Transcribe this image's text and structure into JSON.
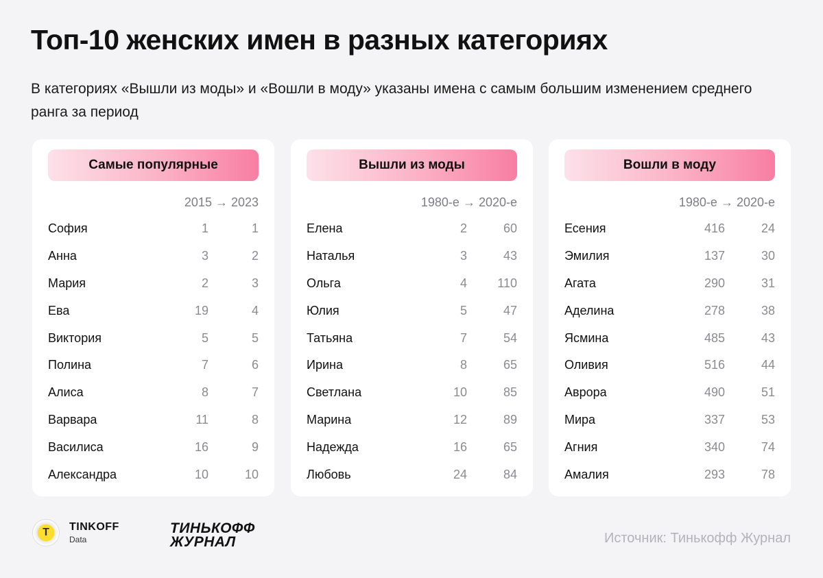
{
  "title": "Топ-10 женских имен в разных категориях",
  "subtitle": "В категориях «Вышли из моды» и «Вошли в моду» указаны имена с самым большим изменением среднего ранга за период",
  "chart_data": [
    {
      "type": "table",
      "title": "Самые популярные",
      "period": "2015 → 2023",
      "rows": [
        {
          "name": "София",
          "v1": 1,
          "v2": 1
        },
        {
          "name": "Анна",
          "v1": 3,
          "v2": 2
        },
        {
          "name": "Мария",
          "v1": 2,
          "v2": 3
        },
        {
          "name": "Ева",
          "v1": 19,
          "v2": 4
        },
        {
          "name": "Виктория",
          "v1": 5,
          "v2": 5
        },
        {
          "name": "Полина",
          "v1": 7,
          "v2": 6
        },
        {
          "name": "Алиса",
          "v1": 8,
          "v2": 7
        },
        {
          "name": "Варвара",
          "v1": 11,
          "v2": 8
        },
        {
          "name": "Василиса",
          "v1": 16,
          "v2": 9
        },
        {
          "name": "Александра",
          "v1": 10,
          "v2": 10
        }
      ]
    },
    {
      "type": "table",
      "title": "Вышли из моды",
      "period": "1980-е → 2020-е",
      "rows": [
        {
          "name": "Елена",
          "v1": 2,
          "v2": 60
        },
        {
          "name": "Наталья",
          "v1": 3,
          "v2": 43
        },
        {
          "name": "Ольга",
          "v1": 4,
          "v2": 110
        },
        {
          "name": "Юлия",
          "v1": 5,
          "v2": 47
        },
        {
          "name": "Татьяна",
          "v1": 7,
          "v2": 54
        },
        {
          "name": "Ирина",
          "v1": 8,
          "v2": 65
        },
        {
          "name": "Светлана",
          "v1": 10,
          "v2": 85
        },
        {
          "name": "Марина",
          "v1": 12,
          "v2": 89
        },
        {
          "name": "Надежда",
          "v1": 16,
          "v2": 65
        },
        {
          "name": "Любовь",
          "v1": 24,
          "v2": 84
        }
      ]
    },
    {
      "type": "table",
      "title": "Вошли в моду",
      "period": "1980-е → 2020-е",
      "rows": [
        {
          "name": "Есения",
          "v1": 416,
          "v2": 24
        },
        {
          "name": "Эмилия",
          "v1": 137,
          "v2": 30
        },
        {
          "name": "Агата",
          "v1": 290,
          "v2": 31
        },
        {
          "name": "Аделина",
          "v1": 278,
          "v2": 38
        },
        {
          "name": "Ясмина",
          "v1": 485,
          "v2": 43
        },
        {
          "name": "Оливия",
          "v1": 516,
          "v2": 44
        },
        {
          "name": "Аврора",
          "v1": 490,
          "v2": 51
        },
        {
          "name": "Мира",
          "v1": 337,
          "v2": 53
        },
        {
          "name": "Агния",
          "v1": 340,
          "v2": 74
        },
        {
          "name": "Амалия",
          "v1": 293,
          "v2": 78
        }
      ]
    }
  ],
  "footer": {
    "brand": "TINKOFF",
    "brand_sub": "Data",
    "journal_line1": "ТИНЬКОФФ",
    "journal_line2": "ЖУРНАЛ",
    "source": "Источник: Тинькофф Журнал"
  },
  "colors": {
    "header_gradient_start": "#fde1ea",
    "header_gradient_end": "#f87ea3",
    "value_gray": "#8a8a92"
  }
}
